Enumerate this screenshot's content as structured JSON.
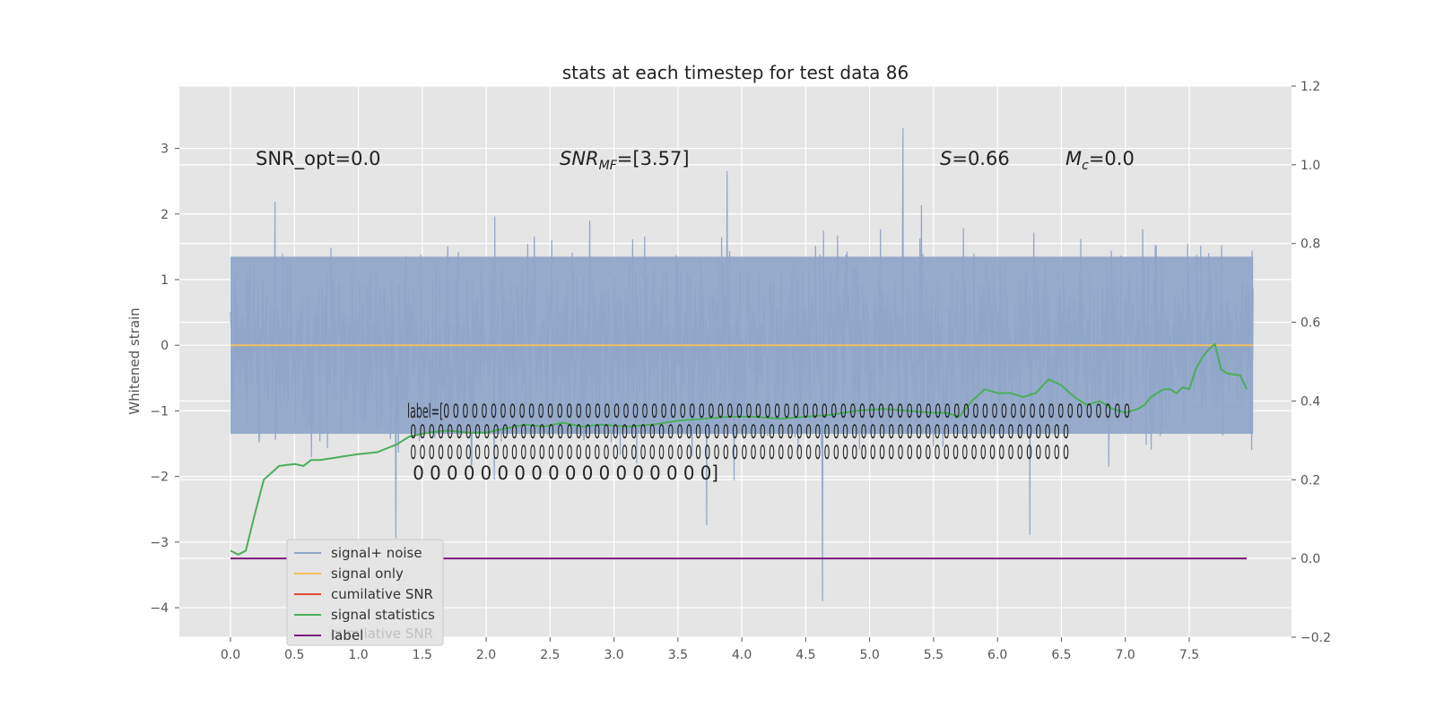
{
  "chart_data": {
    "type": "line",
    "title": "stats at each timestep for test data 86",
    "ylabel": "Whitened strain",
    "xlabel": "",
    "xlim": [
      -0.4,
      8.3
    ],
    "ylim": [
      -4.45,
      3.95
    ],
    "y2lim": [
      -0.2,
      1.2
    ],
    "grid": true,
    "xticks": [
      "0.0",
      "0.5",
      "1.0",
      "1.5",
      "2.0",
      "2.5",
      "3.0",
      "3.5",
      "4.0",
      "4.5",
      "5.0",
      "5.5",
      "6.0",
      "6.5",
      "7.0",
      "7.5"
    ],
    "yticks": [
      "−4",
      "−3",
      "−2",
      "−1",
      "0",
      "1",
      "2",
      "3"
    ],
    "y2ticks": [
      "−0.2",
      "0.0",
      "0.2",
      "0.4",
      "0.6",
      "0.8",
      "1.0",
      "1.2"
    ],
    "annotations": {
      "snr_opt": "SNR_opt=0.0",
      "snr_mf_main": "SNR",
      "snr_mf_sub": "MF",
      "snr_mf_value": "=[3.57]",
      "s_var": "S",
      "s_value": "=0.66",
      "mc_main": "M",
      "mc_sub": "c",
      "mc_value": "=0.0",
      "label_lines": [
        "label=[0 0 0 0 0 0 0 0 0 0 0 0 0 0 0 0 0 0 0 0 0 0 0 0 0 0 0 0 0 0 0 0 0 0 0 0 0 0 0 0 0 0 0 0 0 0 0 0 0 0 0 0 0 0 0 0 0 0 0 0 0 0 0 0 0 0 0 0 0 0 0 0 0",
        " 0 0 0 0 0 0 0 0 0 0 0 0 0 0 0 0 0 0 0 0 0 0 0 0 0 0 0 0 0 0 0 0 0 0 0 0 0 0 0 0 0 0 0 0 0 0 0 0 0 0 0 0 0 0 0 0 0 0 0 0 0 0 0 0 0 0 0 0 0 0 0 0",
        " 0 0 0 0 0 0 0 0 0 0 0 0 0 0 0 0 0 0 0 0 0 0 0 0 0 0 0 0 0 0 0 0 0 0 0 0 0 0 0 0 0 0 0 0 0 0 0 0 0 0 0 0 0 0 0 0 0 0 0 0 0 0 0 0 0 0 0 0 0 0 0 0",
        " 0 0 0 0 0 0 0 0 0 0 0 0 0 0 0 0 0 0]"
      ]
    },
    "series": [
      {
        "name": "signal+ noise",
        "color": "#8fa6c9",
        "axis": "left",
        "x_range": [
          0.0,
          8.0
        ],
        "envelope": "dense noise, mostly within ±2.5, peaks to about 3.6 and down to about −3.9"
      },
      {
        "name": "signal only",
        "color": "#f0c060",
        "axis": "left",
        "x": [
          0.0,
          8.0
        ],
        "values": [
          0.0,
          0.0
        ]
      },
      {
        "name": "cumilative SNR",
        "color": "#e24a33",
        "axis": "right",
        "x": [],
        "values": []
      },
      {
        "name": "signal statistics",
        "color": "#4bae5a",
        "axis": "right",
        "x": [
          0.0,
          0.06,
          0.12,
          0.18,
          0.26,
          0.38,
          0.5,
          0.57,
          0.63,
          0.7,
          0.8,
          0.9,
          1.0,
          1.15,
          1.3,
          1.4,
          1.55,
          1.7,
          1.85,
          2.0,
          2.15,
          2.3,
          2.45,
          2.6,
          2.75,
          2.9,
          3.1,
          3.3,
          3.5,
          3.7,
          3.9,
          4.1,
          4.3,
          4.5,
          4.7,
          4.9,
          5.1,
          5.3,
          5.5,
          5.6,
          5.7,
          5.8,
          5.9,
          6.0,
          6.1,
          6.2,
          6.3,
          6.4,
          6.5,
          6.6,
          6.7,
          6.8,
          6.9,
          7.0,
          7.1,
          7.15,
          7.2,
          7.3,
          7.35,
          7.4,
          7.45,
          7.5,
          7.55,
          7.6,
          7.65,
          7.7,
          7.75,
          7.8,
          7.9,
          7.95
        ],
        "values": [
          0.02,
          0.01,
          0.02,
          0.1,
          0.2,
          0.235,
          0.24,
          0.235,
          0.25,
          0.25,
          0.255,
          0.26,
          0.265,
          0.27,
          0.29,
          0.31,
          0.32,
          0.325,
          0.32,
          0.32,
          0.33,
          0.34,
          0.335,
          0.345,
          0.335,
          0.34,
          0.335,
          0.34,
          0.35,
          0.355,
          0.36,
          0.36,
          0.355,
          0.36,
          0.365,
          0.375,
          0.38,
          0.375,
          0.37,
          0.37,
          0.36,
          0.4,
          0.43,
          0.42,
          0.42,
          0.41,
          0.42,
          0.455,
          0.44,
          0.41,
          0.39,
          0.4,
          0.38,
          0.37,
          0.38,
          0.39,
          0.41,
          0.43,
          0.43,
          0.42,
          0.435,
          0.43,
          0.48,
          0.51,
          0.53,
          0.545,
          0.48,
          0.47,
          0.465,
          0.43
        ]
      },
      {
        "name": "label",
        "color": "#7b1a7b",
        "axis": "right",
        "x": [
          0.0,
          7.95
        ],
        "values": [
          0.0,
          0.0
        ]
      }
    ],
    "legend": {
      "placement": "lower-left",
      "entries": [
        "signal+ noise",
        "signal only",
        "cumilative SNR",
        "signal statistics",
        "label"
      ],
      "ghost_text": "cumilative SNR"
    }
  }
}
